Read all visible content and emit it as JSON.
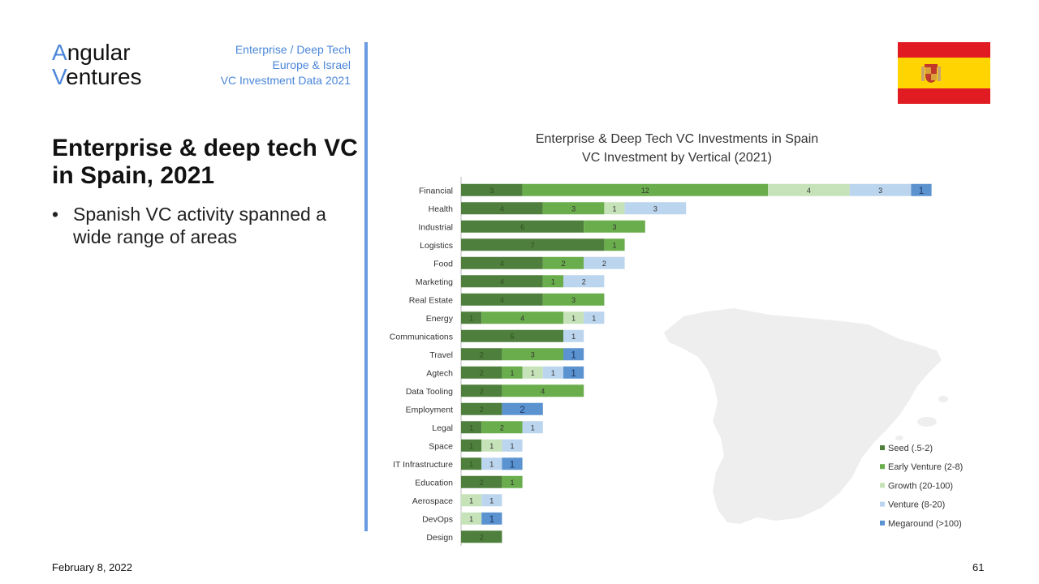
{
  "header": {
    "logo_line1": "ngular",
    "logo_line1_initial": "A",
    "logo_line2": "entures",
    "logo_line2_initial": "V",
    "subtitle_lines": [
      "Enterprise / Deep Tech",
      "Europe & Israel",
      "VC Investment Data 2021"
    ]
  },
  "slide": {
    "title": "Enterprise & deep tech VC in Spain, 2021",
    "bullets": [
      "Spanish VC activity spanned a wide range of areas"
    ]
  },
  "footer": {
    "date": "February 8, 2022",
    "page_number": "61"
  },
  "flag": {
    "country": "Spain",
    "colors": {
      "red": "#e11b22",
      "yellow": "#ffd400"
    }
  },
  "chart_data": {
    "type": "bar",
    "orientation": "horizontal",
    "stacked": true,
    "title": "Enterprise & Deep Tech VC Investments in Spain",
    "subtitle": "VC Investment by Vertical (2021)",
    "xlabel": "",
    "ylabel": "",
    "xlim": [
      0,
      23
    ],
    "grid": false,
    "legend_position": "bottom-right",
    "categories": [
      "Financial",
      "Health",
      "Industrial",
      "Logistics",
      "Food",
      "Marketing",
      "Real Estate",
      "Energy",
      "Communications",
      "Travel",
      "Agtech",
      "Data Tooling",
      "Employment",
      "Legal",
      "Space",
      "IT Infrastructure",
      "Education",
      "Aerospace",
      "DevOps",
      "Design"
    ],
    "series": [
      {
        "name": "Seed (.5-2)",
        "color": "#4f7f3c",
        "values": [
          3,
          4,
          6,
          7,
          4,
          4,
          4,
          1,
          5,
          2,
          2,
          2,
          2,
          1,
          1,
          1,
          2,
          0,
          0,
          2
        ]
      },
      {
        "name": "Early Venture (2-8)",
        "color": "#6aad4c",
        "values": [
          12,
          3,
          3,
          1,
          2,
          1,
          3,
          4,
          0,
          3,
          1,
          4,
          0,
          2,
          0,
          0,
          1,
          0,
          0,
          0
        ]
      },
      {
        "name": "Growth (20-100)",
        "color": "#c6e2b8",
        "values": [
          4,
          1,
          0,
          0,
          0,
          0,
          0,
          1,
          0,
          0,
          1,
          0,
          0,
          0,
          1,
          0,
          0,
          1,
          1,
          0
        ]
      },
      {
        "name": "Venture (8-20)",
        "color": "#bcd5ee",
        "values": [
          3,
          3,
          0,
          0,
          2,
          2,
          0,
          1,
          1,
          0,
          1,
          0,
          0,
          1,
          1,
          1,
          0,
          1,
          0,
          0
        ]
      },
      {
        "name": "Megaround (>100)",
        "color": "#5b93d0",
        "values": [
          1,
          0,
          0,
          0,
          0,
          0,
          0,
          0,
          0,
          1,
          1,
          0,
          2,
          0,
          0,
          1,
          0,
          0,
          1,
          0
        ]
      }
    ]
  }
}
